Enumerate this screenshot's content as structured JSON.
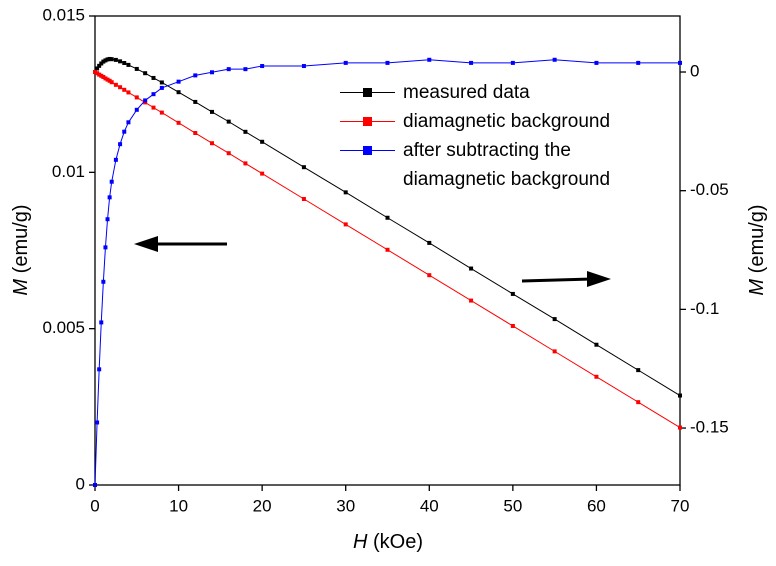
{
  "chart_data": {
    "type": "line",
    "xlabel_symbol": "H",
    "xlabel_unit": "(kOe)",
    "ylabel_symbol": "M",
    "ylabel_unit": "(emu/g)",
    "y2label_symbol": "M",
    "y2label_unit": "(emu/g)",
    "x": [
      0,
      0.25,
      0.5,
      0.75,
      1,
      1.25,
      1.5,
      1.75,
      2,
      2.5,
      3,
      3.5,
      4,
      5,
      6,
      7,
      8,
      10,
      12,
      14,
      16,
      18,
      20,
      25,
      30,
      35,
      40,
      45,
      50,
      55,
      60,
      65,
      70
    ],
    "series": [
      {
        "name": "measured data",
        "color": "#000000",
        "axis": "y2",
        "values": [
          0,
          0.0015,
          0.0026,
          0.0036,
          0.0044,
          0.0049,
          0.0053,
          0.0055,
          0.0054,
          0.0051,
          0.0045,
          0.0038,
          0.003,
          0.0013,
          -0.0005,
          -0.0025,
          -0.0044,
          -0.0085,
          -0.0126,
          -0.0168,
          -0.0209,
          -0.0252,
          -0.0294,
          -0.0401,
          -0.0507,
          -0.0614,
          -0.072,
          -0.0828,
          -0.0935,
          -0.1041,
          -0.1149,
          -0.1256,
          -0.1363
        ]
      },
      {
        "name": "diamagnetic background",
        "color": "#ff0000",
        "axis": "y2",
        "values": [
          0,
          -0.0005,
          -0.0011,
          -0.0016,
          -0.0021,
          -0.0027,
          -0.0032,
          -0.0037,
          -0.0043,
          -0.0054,
          -0.0064,
          -0.0075,
          -0.0086,
          -0.0107,
          -0.0128,
          -0.015,
          -0.0171,
          -0.0214,
          -0.0257,
          -0.03,
          -0.0342,
          -0.0385,
          -0.0428,
          -0.0535,
          -0.0642,
          -0.0749,
          -0.0856,
          -0.0963,
          -0.107,
          -0.1177,
          -0.1284,
          -0.1391,
          -0.1498
        ]
      },
      {
        "name": "after subtracting the diamagnetic background",
        "color": "#0000ff",
        "axis": "y",
        "values": [
          0,
          0.002,
          0.0037,
          0.0052,
          0.0065,
          0.0076,
          0.0085,
          0.0092,
          0.0097,
          0.0104,
          0.0109,
          0.0113,
          0.0116,
          0.012,
          0.0123,
          0.0125,
          0.0127,
          0.0129,
          0.0131,
          0.0132,
          0.0133,
          0.0133,
          0.0134,
          0.0134,
          0.0135,
          0.0135,
          0.0136,
          0.0135,
          0.0135,
          0.0136,
          0.0135,
          0.0135,
          0.0135
        ]
      }
    ],
    "xlim": [
      0,
      70
    ],
    "xticks": [
      0,
      10,
      20,
      30,
      40,
      50,
      60,
      70
    ],
    "ylim": [
      0,
      0.015
    ],
    "yticks": [
      0,
      0.005,
      0.01,
      0.015
    ],
    "y2lim": [
      -0.174,
      0.0236
    ],
    "y2ticks": [
      0,
      -0.05,
      -0.1,
      -0.15
    ],
    "grid": false
  }
}
